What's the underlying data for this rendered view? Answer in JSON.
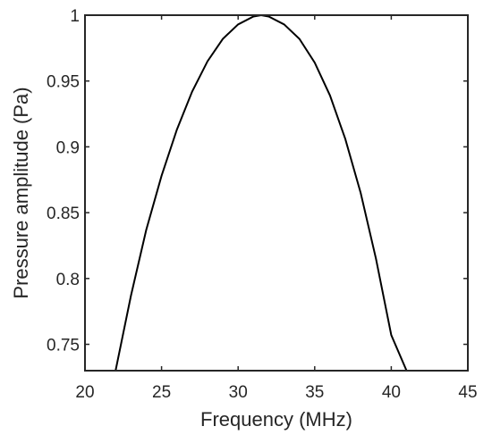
{
  "chart_data": {
    "type": "line",
    "title": "",
    "xlabel": "Frequency (MHz)",
    "ylabel": "Pressure amplitude (Pa)",
    "xlim": [
      20,
      45
    ],
    "ylim": [
      0.73,
      1.0
    ],
    "xticks": [
      20,
      25,
      30,
      35,
      40,
      45
    ],
    "yticks": [
      0.75,
      0.8,
      0.85,
      0.9,
      0.95,
      1
    ],
    "xtick_labels": [
      "20",
      "25",
      "30",
      "35",
      "40",
      "45"
    ],
    "ytick_labels": [
      "0.75",
      "0.8",
      "0.85",
      "0.9",
      "0.95",
      "1"
    ],
    "grid": false,
    "legend": "none",
    "line_color": "#000000",
    "series": [
      {
        "x": [
          22.0,
          23.0,
          24.0,
          25.0,
          26.0,
          27.0,
          28.0,
          29.0,
          30.0,
          31.0,
          31.5,
          32.0,
          33.0,
          34.0,
          35.0,
          36.0,
          37.0,
          38.0,
          39.0,
          40.0,
          41.0
        ],
        "y": [
          0.73,
          0.787,
          0.837,
          0.878,
          0.913,
          0.942,
          0.965,
          0.982,
          0.993,
          0.999,
          1.0,
          0.999,
          0.993,
          0.982,
          0.964,
          0.939,
          0.906,
          0.865,
          0.815,
          0.757,
          0.73
        ]
      }
    ]
  }
}
